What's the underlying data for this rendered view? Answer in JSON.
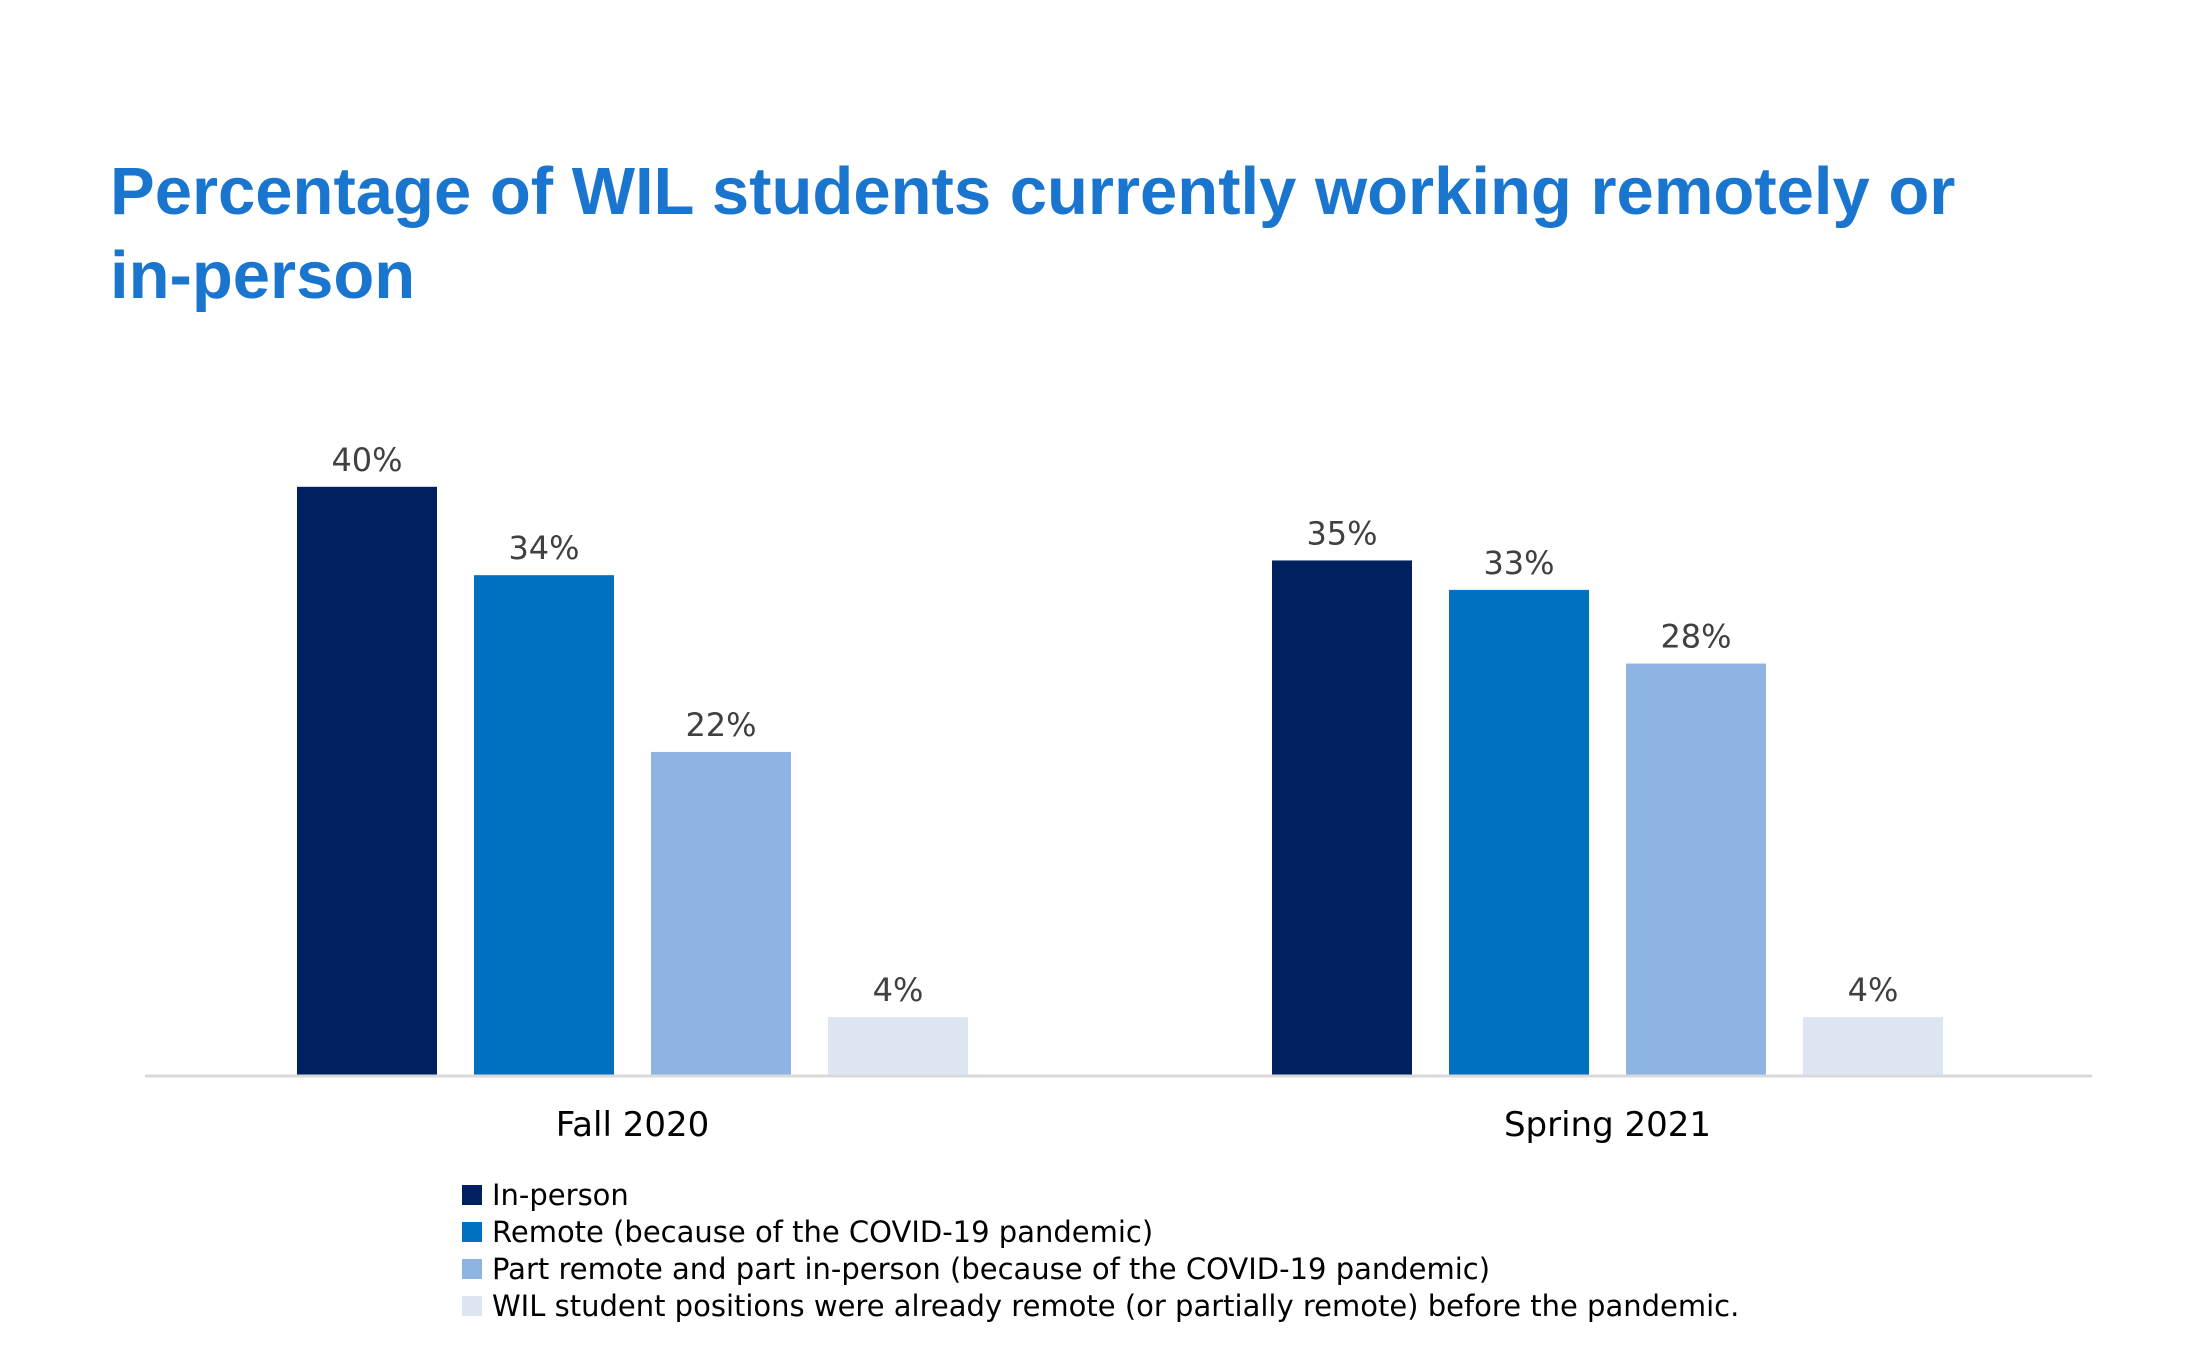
{
  "title": "Percentage of WIL students currently working remotely or in-person",
  "chart_data": {
    "type": "bar",
    "title": "Percentage of WIL students currently working remotely or in-person",
    "categories": [
      "Fall 2020",
      "Spring 2021"
    ],
    "series": [
      {
        "name": "In-person",
        "values": [
          40,
          35
        ],
        "labels": [
          "40%",
          "35%"
        ],
        "color": "#002060"
      },
      {
        "name": "Remote (because of the COVID-19 pandemic)",
        "values": [
          34,
          33
        ],
        "labels": [
          "34%",
          "33%"
        ],
        "color": "#0070c0"
      },
      {
        "name": "Part remote and part in-person  (because of the COVID-19 pandemic)",
        "values": [
          22,
          28
        ],
        "labels": [
          "22%",
          "28%"
        ],
        "color": "#8eb4e3"
      },
      {
        "name": "WIL student positions were already remote (or partially  remote) before the pandemic.",
        "values": [
          4,
          4
        ],
        "labels": [
          "4%",
          "4%"
        ],
        "color": "#dce6f2"
      }
    ],
    "ylim": [
      0,
      40
    ],
    "grid": false,
    "legend_position": "bottom",
    "xlabel": "",
    "ylabel": ""
  }
}
